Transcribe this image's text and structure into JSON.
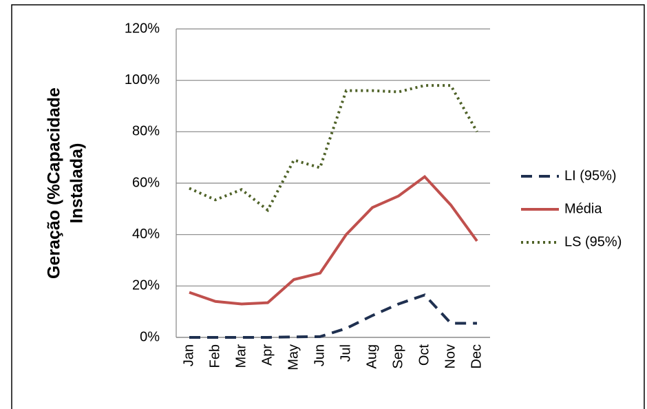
{
  "chart_data": {
    "type": "line",
    "y_label": [
      "Geração (%Capacidade",
      "Instalada)"
    ],
    "categories": [
      "Jan",
      "Feb",
      "Mar",
      "Apr",
      "May",
      "Jun",
      "Jul",
      "Aug",
      "Sep",
      "Oct",
      "Nov",
      "Dec"
    ],
    "series": [
      {
        "name": "LI (95%)",
        "color": "#1f3050",
        "dash": "dashed",
        "values": [
          0,
          0,
          0,
          0,
          0.2,
          0.3,
          3.5,
          8.5,
          13,
          16.5,
          5.5,
          5.5
        ]
      },
      {
        "name": "Média",
        "color": "#c0504d",
        "dash": "solid",
        "values": [
          17.5,
          14,
          13,
          13.5,
          22.5,
          25,
          40,
          50.5,
          55,
          62.5,
          51.5,
          37.5
        ]
      },
      {
        "name": "LS (95%)",
        "color": "#4f6228",
        "dash": "dotted",
        "values": [
          58,
          53.5,
          57.5,
          49.5,
          69,
          66,
          96,
          96,
          95.5,
          98,
          98,
          80
        ]
      }
    ],
    "ylim": [
      0,
      120
    ],
    "yticks": [
      {
        "value": 0,
        "label": "0%"
      },
      {
        "value": 20,
        "label": "20%"
      },
      {
        "value": 40,
        "label": "40%"
      },
      {
        "value": 60,
        "label": "60%"
      },
      {
        "value": 80,
        "label": "80%"
      },
      {
        "value": 100,
        "label": "100%"
      },
      {
        "value": 120,
        "label": "120%"
      }
    ],
    "grid": true,
    "legend": "right"
  }
}
